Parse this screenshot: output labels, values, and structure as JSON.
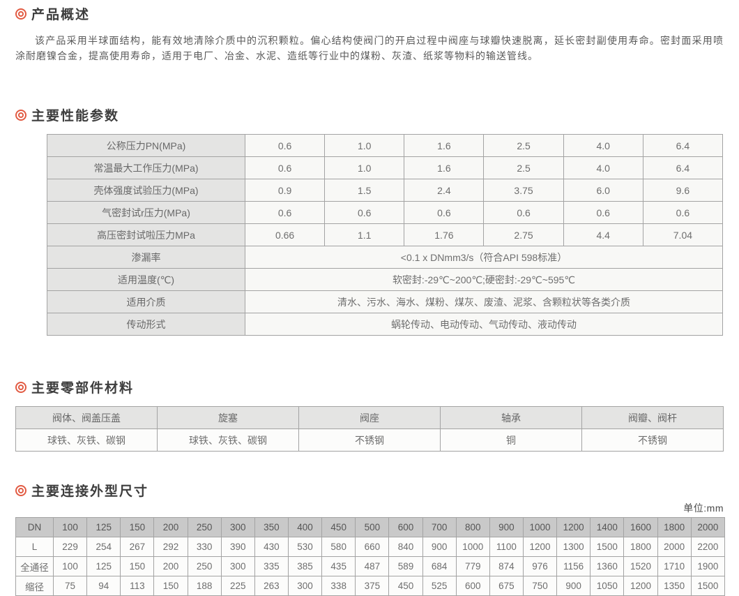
{
  "colors": {
    "accent": "#e25b43",
    "table_label_bg": "#e4e4e3",
    "dim_header_bg": "#c9c9c9",
    "border": "#a3a3a3"
  },
  "overview": {
    "title": "产品概述",
    "paragraph": "该产品采用半球面结构，能有效地清除介质中的沉积颗粒。偏心结构使阀门的开启过程中阀座与球瓣快速脱离，延长密封副使用寿命。密封面采用喷涂耐磨镍合金，提高使用寿命，适用于电厂、冶金、水泥、造纸等行业中的煤粉、灰渣、纸浆等物料的输送管线。"
  },
  "performance": {
    "title": "主要性能参数",
    "rows": [
      {
        "label": "公称压力PN(MPa)",
        "values": [
          "0.6",
          "1.0",
          "1.6",
          "2.5",
          "4.0",
          "6.4"
        ]
      },
      {
        "label": "常温最大工作压力(MPa)",
        "values": [
          "0.6",
          "1.0",
          "1.6",
          "2.5",
          "4.0",
          "6.4"
        ]
      },
      {
        "label": "壳体强度试验压力(MPa)",
        "values": [
          "0.9",
          "1.5",
          "2.4",
          "3.75",
          "6.0",
          "9.6"
        ]
      },
      {
        "label": "气密封试r压力(MPa)",
        "values": [
          "0.6",
          "0.6",
          "0.6",
          "0.6",
          "0.6",
          "0.6"
        ]
      },
      {
        "label": "高压密封试啦压力MPa",
        "values": [
          "0.66",
          "1.1",
          "1.76",
          "2.75",
          "4.4",
          "7.04"
        ]
      }
    ],
    "span_rows": [
      {
        "label": "渗漏率",
        "value": "<0.1 x DNmm3/s（符合API 598标准）"
      },
      {
        "label": "适用温度(℃)",
        "value": "软密封:-29℃~200℃;硬密封:-29℃~595℃"
      },
      {
        "label": "适用介质",
        "value": "清水、污水、海水、煤粉、煤灰、废渣、泥浆、含颗粒状等各类介质"
      },
      {
        "label": "传动形式",
        "value": "蜗轮传动、电动传动、气动传动、液动传动"
      }
    ]
  },
  "materials": {
    "title": "主要零部件材料",
    "headers": [
      "阀体、阀盖压盖",
      "旋塞",
      "阀座",
      "轴承",
      "阀瓣、阀杆"
    ],
    "values": [
      "球铁、灰铁、碳钢",
      "球铁、灰铁、碳钢",
      "不锈钢",
      "铜",
      "不锈钢"
    ]
  },
  "dimensions": {
    "title": "主要连接外型尺寸",
    "unit_label": "单位:mm",
    "rows": [
      {
        "label": "DN",
        "header": true,
        "values": [
          "100",
          "125",
          "150",
          "200",
          "250",
          "300",
          "350",
          "400",
          "450",
          "500",
          "600",
          "700",
          "800",
          "900",
          "1000",
          "1200",
          "1400",
          "1600",
          "1800",
          "2000"
        ]
      },
      {
        "label": "L",
        "header": false,
        "values": [
          "229",
          "254",
          "267",
          "292",
          "330",
          "390",
          "430",
          "530",
          "580",
          "660",
          "840",
          "900",
          "1000",
          "1100",
          "1200",
          "1300",
          "1500",
          "1800",
          "2000",
          "2200"
        ]
      },
      {
        "label": "全通径",
        "header": false,
        "values": [
          "100",
          "125",
          "150",
          "200",
          "250",
          "300",
          "335",
          "385",
          "435",
          "487",
          "589",
          "684",
          "779",
          "874",
          "976",
          "1156",
          "1360",
          "1520",
          "1710",
          "1900"
        ]
      },
      {
        "label": "缩径",
        "header": false,
        "values": [
          "75",
          "94",
          "113",
          "150",
          "188",
          "225",
          "263",
          "300",
          "338",
          "375",
          "450",
          "525",
          "600",
          "675",
          "750",
          "900",
          "1050",
          "1200",
          "1350",
          "1500"
        ]
      }
    ]
  }
}
